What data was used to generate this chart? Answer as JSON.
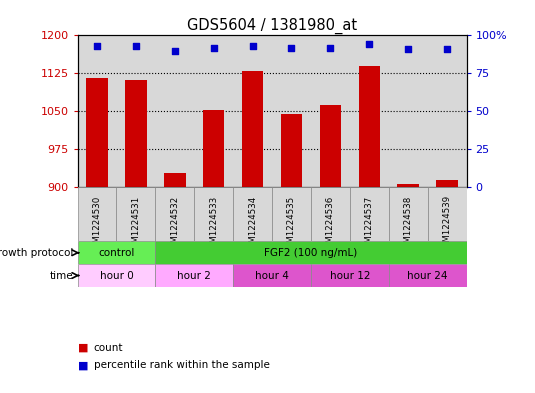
{
  "title": "GDS5604 / 1381980_at",
  "samples": [
    "GSM1224530",
    "GSM1224531",
    "GSM1224532",
    "GSM1224533",
    "GSM1224534",
    "GSM1224535",
    "GSM1224536",
    "GSM1224537",
    "GSM1224538",
    "GSM1224539"
  ],
  "counts": [
    1115,
    1112,
    928,
    1052,
    1130,
    1045,
    1062,
    1140,
    906,
    914
  ],
  "percentile_ranks": [
    93,
    93,
    90,
    92,
    93,
    92,
    92,
    94,
    91,
    91
  ],
  "ylim_left": [
    900,
    1200
  ],
  "ylim_right": [
    0,
    100
  ],
  "yticks_left": [
    900,
    975,
    1050,
    1125,
    1200
  ],
  "yticks_right": [
    0,
    25,
    50,
    75,
    100
  ],
  "bar_color": "#cc0000",
  "dot_color": "#0000cc",
  "growth_protocol_data": [
    [
      0,
      2,
      "#66ee55",
      "control"
    ],
    [
      2,
      10,
      "#44cc33",
      "FGF2 (100 ng/mL)"
    ]
  ],
  "time_data": [
    [
      0,
      2,
      "#ffccff",
      "hour 0"
    ],
    [
      2,
      4,
      "#ffaaff",
      "hour 2"
    ],
    [
      4,
      6,
      "#dd55cc",
      "hour 4"
    ],
    [
      6,
      8,
      "#dd55cc",
      "hour 12"
    ],
    [
      8,
      10,
      "#dd55cc",
      "hour 24"
    ]
  ],
  "legend_count_color": "#cc0000",
  "legend_dot_color": "#0000cc"
}
